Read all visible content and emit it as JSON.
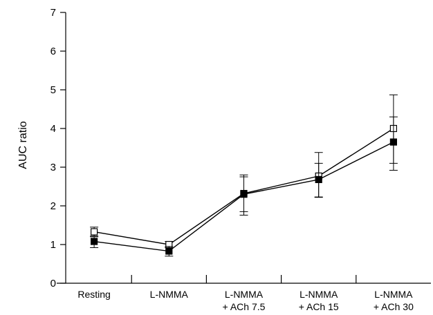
{
  "chart_data": {
    "type": "line",
    "title": "",
    "xlabel": "",
    "ylabel": "AUC ratio",
    "ylim": [
      0,
      7
    ],
    "yticks": [
      0,
      1,
      2,
      3,
      4,
      5,
      6,
      7
    ],
    "grid": false,
    "legend": "none",
    "categories": [
      [
        "Resting"
      ],
      [
        "L-NMMA"
      ],
      [
        "L-NMMA",
        "+ ACh 7.5"
      ],
      [
        "L-NMMA",
        "+ ACh 15"
      ],
      [
        "L-NMMA",
        "+ ACh 30"
      ]
    ],
    "series": [
      {
        "marker": "open-square",
        "values": [
          1.33,
          1.0,
          2.32,
          2.77,
          4.0
        ],
        "error_high": [
          1.45,
          1.08,
          2.8,
          3.38,
          4.87
        ],
        "error_low": [
          1.22,
          0.92,
          1.85,
          2.22,
          3.1
        ]
      },
      {
        "marker": "filled-square",
        "values": [
          1.08,
          0.83,
          2.3,
          2.68,
          3.65
        ],
        "error_high": [
          1.2,
          0.95,
          2.75,
          3.1,
          4.3
        ],
        "error_low": [
          0.92,
          0.7,
          1.76,
          2.23,
          2.92
        ]
      }
    ]
  }
}
